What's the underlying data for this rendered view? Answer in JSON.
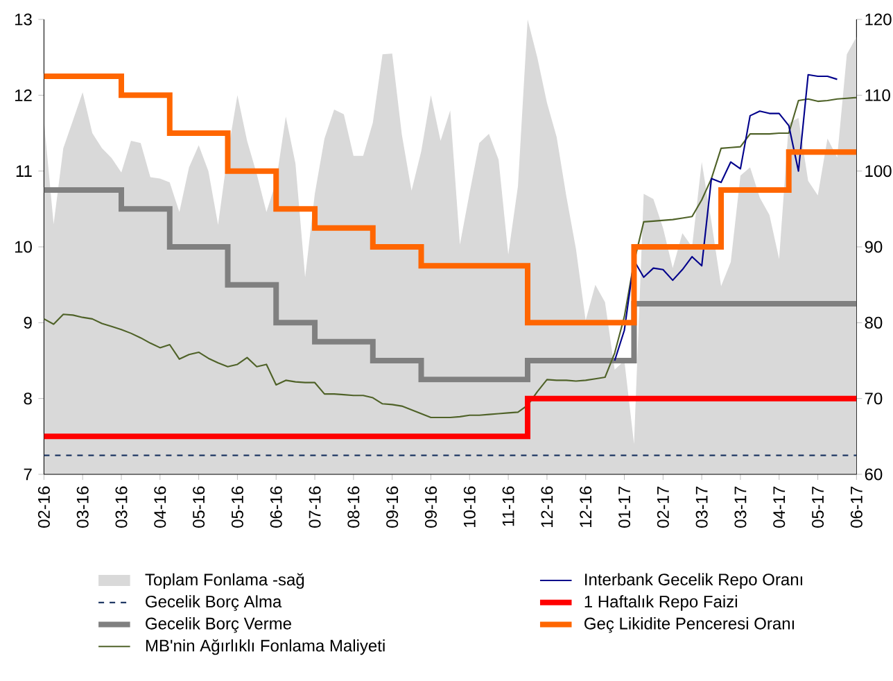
{
  "chart_data": {
    "type": "line",
    "categories": [
      "02-16",
      null,
      null,
      null,
      "03-16",
      null,
      null,
      null,
      "03-16",
      null,
      null,
      null,
      "04-16",
      null,
      null,
      null,
      "05-16",
      null,
      null,
      null,
      "05-16",
      null,
      null,
      null,
      "06-16",
      null,
      null,
      null,
      "07-16",
      null,
      null,
      null,
      "08-16",
      null,
      null,
      null,
      "09-16",
      null,
      null,
      null,
      "09-16",
      null,
      null,
      null,
      "10-16",
      null,
      null,
      null,
      "11-16",
      null,
      null,
      null,
      "12-16",
      null,
      null,
      null,
      "12-16",
      null,
      null,
      null,
      "01-17",
      null,
      null,
      null,
      "02-17",
      null,
      null,
      null,
      "03-17",
      null,
      null,
      null,
      "03-17",
      null,
      null,
      null,
      "04-17",
      null,
      null,
      null,
      "05-17",
      null,
      null,
      null,
      "06-17"
    ],
    "ylim": [
      7,
      13
    ],
    "yticks": [
      7,
      8,
      9,
      10,
      11,
      12,
      13
    ],
    "y2lim": [
      60,
      120
    ],
    "y2ticks": [
      60,
      70,
      80,
      90,
      100,
      110,
      120
    ],
    "legend": "bottom",
    "series": [
      {
        "name": "Toplam Fonlama -sağ",
        "type": "area",
        "axis": "y2",
        "color": "#d9d9d9",
        "values": [
          106.7,
          93,
          103,
          106.7,
          110.4,
          105,
          103,
          101.7,
          99.8,
          104,
          103.7,
          99.2,
          99,
          98.5,
          94.6,
          100.5,
          103.4,
          100,
          92.9,
          102.3,
          110,
          104,
          99.6,
          94.6,
          98.6,
          107.2,
          101,
          86,
          97,
          104.3,
          108.1,
          107.5,
          102,
          102,
          106.4,
          115.4,
          115.5,
          104.8,
          97.4,
          102.6,
          110,
          104,
          108,
          90.3,
          97.1,
          103.7,
          104.9,
          101.5,
          89,
          98,
          120,
          115,
          109,
          104.5,
          96.7,
          89.7,
          80.3,
          85,
          82.7,
          73.8,
          75,
          64,
          97,
          96.3,
          92.5,
          87.2,
          91.8,
          90,
          101.2,
          93.3,
          84.8,
          88,
          99.4,
          100.5,
          96.5,
          94.2,
          88.4,
          106.3,
          107,
          98.7,
          96.8,
          104.3,
          101.8,
          115.4,
          117.7
        ]
      },
      {
        "name": "Gecelik Borç Alma",
        "line_style": "dashed",
        "color": "#1f3864",
        "values": [
          7.25,
          7.25,
          7.25,
          7.25,
          7.25,
          7.25,
          7.25,
          7.25,
          7.25,
          7.25,
          7.25,
          7.25,
          7.25,
          7.25,
          7.25,
          7.25,
          7.25,
          7.25,
          7.25,
          7.25,
          7.25,
          7.25,
          7.25,
          7.25,
          7.25,
          7.25,
          7.25,
          7.25,
          7.25,
          7.25,
          7.25,
          7.25,
          7.25,
          7.25,
          7.25,
          7.25,
          7.25,
          7.25,
          7.25,
          7.25,
          7.25,
          7.25,
          7.25,
          7.25,
          7.25,
          7.25,
          7.25,
          7.25,
          7.25,
          7.25,
          7.25,
          7.25,
          7.25,
          7.25,
          7.25,
          7.25,
          7.25,
          7.25,
          7.25,
          7.25,
          7.25,
          7.25,
          7.25,
          7.25,
          7.25,
          7.25,
          7.25,
          7.25,
          7.25,
          7.25,
          7.25,
          7.25,
          7.25,
          7.25,
          7.25,
          7.25,
          7.25,
          7.25,
          7.25,
          7.25,
          7.25,
          7.25,
          7.25,
          7.25,
          7.25
        ]
      },
      {
        "name": "Gecelik Borç Verme",
        "type": "step",
        "color": "#808080",
        "values": [
          10.75,
          10.75,
          10.75,
          10.75,
          10.75,
          10.75,
          10.75,
          10.75,
          10.5,
          10.5,
          10.5,
          10.5,
          10.5,
          10,
          10,
          10,
          10,
          10,
          10,
          9.5,
          9.5,
          9.5,
          9.5,
          9.5,
          9,
          9,
          9,
          9,
          8.75,
          8.75,
          8.75,
          8.75,
          8.75,
          8.75,
          8.5,
          8.5,
          8.5,
          8.5,
          8.5,
          8.25,
          8.25,
          8.25,
          8.25,
          8.25,
          8.25,
          8.25,
          8.25,
          8.25,
          8.25,
          8.25,
          8.5,
          8.5,
          8.5,
          8.5,
          8.5,
          8.5,
          8.5,
          8.5,
          8.5,
          8.5,
          8.5,
          9.25,
          9.25,
          9.25,
          9.25,
          9.25,
          9.25,
          9.25,
          9.25,
          9.25,
          9.25,
          9.25,
          9.25,
          9.25,
          9.25,
          9.25,
          9.25,
          9.25,
          9.25,
          9.25,
          9.25,
          9.25,
          9.25,
          9.25,
          9.25
        ]
      },
      {
        "name": "MB'nin Ağırlıklı Fonlama Maliyeti",
        "color": "#4f6228",
        "values": [
          9.05,
          8.98,
          9.11,
          9.1,
          9.07,
          9.05,
          8.99,
          8.95,
          8.91,
          8.86,
          8.8,
          8.73,
          8.67,
          8.71,
          8.52,
          8.58,
          8.61,
          8.53,
          8.47,
          8.42,
          8.45,
          8.54,
          8.42,
          8.45,
          8.18,
          8.24,
          8.22,
          8.21,
          8.21,
          8.06,
          8.06,
          8.05,
          8.04,
          8.04,
          8.01,
          7.93,
          7.92,
          7.9,
          7.85,
          7.8,
          7.75,
          7.75,
          7.75,
          7.76,
          7.78,
          7.78,
          7.79,
          7.8,
          7.81,
          7.82,
          7.91,
          8.09,
          8.25,
          8.24,
          8.24,
          8.23,
          8.24,
          8.26,
          8.28,
          8.6,
          9.08,
          9.8,
          10.33,
          10.34,
          10.35,
          10.36,
          10.38,
          10.4,
          10.62,
          10.9,
          11.3,
          11.31,
          11.32,
          11.49,
          11.49,
          11.49,
          11.5,
          11.5,
          11.93,
          11.95,
          11.92,
          11.93,
          11.95,
          11.96,
          11.97
        ]
      },
      {
        "name": "Interbank Gecelik Repo Oranı",
        "color": "#00008b",
        "values": [
          null,
          null,
          null,
          null,
          null,
          null,
          null,
          null,
          null,
          null,
          null,
          null,
          null,
          null,
          null,
          null,
          null,
          null,
          null,
          null,
          null,
          null,
          null,
          null,
          null,
          null,
          null,
          null,
          null,
          null,
          null,
          null,
          null,
          null,
          null,
          null,
          null,
          null,
          null,
          null,
          null,
          null,
          null,
          null,
          null,
          null,
          null,
          null,
          null,
          null,
          null,
          null,
          null,
          null,
          null,
          null,
          null,
          null,
          null,
          8.5,
          8.9,
          9.82,
          9.6,
          9.72,
          9.7,
          9.56,
          9.7,
          9.87,
          9.75,
          10.9,
          10.85,
          11.12,
          11.03,
          11.73,
          11.79,
          11.76,
          11.76,
          11.6,
          11.0,
          12.27,
          12.25,
          12.25,
          12.21,
          null,
          null
        ]
      },
      {
        "name": "1 Haftalık Repo Faizi",
        "type": "step",
        "color": "#ff0000",
        "values": [
          7.5,
          7.5,
          7.5,
          7.5,
          7.5,
          7.5,
          7.5,
          7.5,
          7.5,
          7.5,
          7.5,
          7.5,
          7.5,
          7.5,
          7.5,
          7.5,
          7.5,
          7.5,
          7.5,
          7.5,
          7.5,
          7.5,
          7.5,
          7.5,
          7.5,
          7.5,
          7.5,
          7.5,
          7.5,
          7.5,
          7.5,
          7.5,
          7.5,
          7.5,
          7.5,
          7.5,
          7.5,
          7.5,
          7.5,
          7.5,
          7.5,
          7.5,
          7.5,
          7.5,
          7.5,
          7.5,
          7.5,
          7.5,
          7.5,
          7.5,
          8,
          8,
          8,
          8,
          8,
          8,
          8,
          8,
          8,
          8,
          8,
          8,
          8,
          8,
          8,
          8,
          8,
          8,
          8,
          8,
          8,
          8,
          8,
          8,
          8,
          8,
          8,
          8,
          8,
          8,
          8,
          8,
          8,
          8,
          8
        ]
      },
      {
        "name": "Geç Likidite Penceresi Oranı",
        "type": "step",
        "color": "#ff6600",
        "values": [
          12.25,
          12.25,
          12.25,
          12.25,
          12.25,
          12.25,
          12.25,
          12.25,
          12,
          12,
          12,
          12,
          12,
          11.5,
          11.5,
          11.5,
          11.5,
          11.5,
          11.5,
          11,
          11,
          11,
          11,
          11,
          10.5,
          10.5,
          10.5,
          10.5,
          10.25,
          10.25,
          10.25,
          10.25,
          10.25,
          10.25,
          10,
          10,
          10,
          10,
          10,
          9.75,
          9.75,
          9.75,
          9.75,
          9.75,
          9.75,
          9.75,
          9.75,
          9.75,
          9.75,
          9.75,
          9,
          9,
          9,
          9,
          9,
          9,
          9,
          9,
          9,
          9,
          9,
          10,
          10,
          10,
          10,
          10,
          10,
          10,
          10,
          10,
          10.75,
          10.75,
          10.75,
          10.75,
          10.75,
          10.75,
          10.75,
          11.25,
          11.25,
          11.25,
          11.25,
          11.25,
          11.25,
          11.25,
          11.25
        ]
      }
    ]
  }
}
